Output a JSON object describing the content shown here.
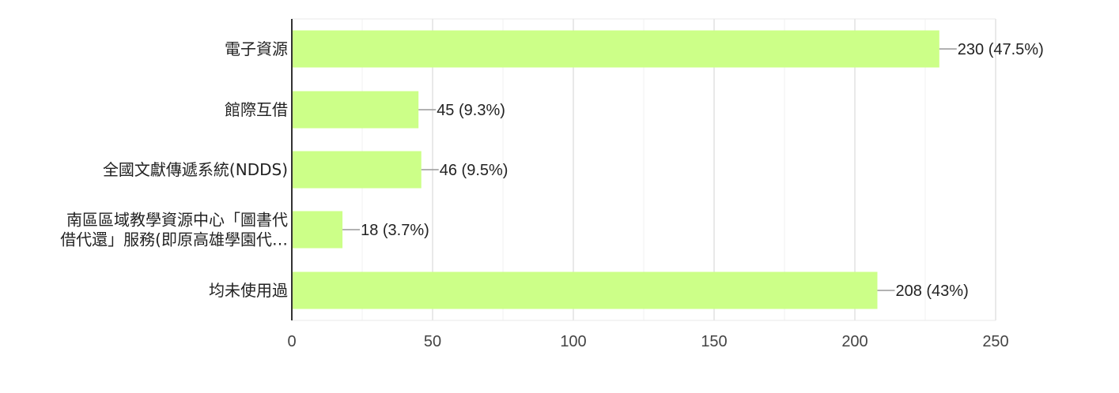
{
  "chart_data": {
    "type": "bar",
    "orientation": "horizontal",
    "categories": [
      "電子資源",
      "館際互借",
      "全國文獻傳遞系統(NDDS)",
      "南區區域教學資源中心「圖書代借代還」服務(即原高雄學園代…",
      "均未使用過"
    ],
    "category_lines": [
      [
        "電子資源"
      ],
      [
        "館際互借"
      ],
      [
        "全國文獻傳遞系統(NDDS)"
      ],
      [
        "南區區域教學資源中心「圖書代",
        "借代還」服務(即原高雄學園代…"
      ],
      [
        "均未使用過"
      ]
    ],
    "values": [
      230,
      45,
      46,
      18,
      208
    ],
    "data_labels": [
      "230 (47.5%)",
      "45 (9.3%)",
      "46 (9.5%)",
      "18 (3.7%)",
      "208 (43%)"
    ],
    "x_ticks": [
      0,
      50,
      100,
      150,
      200,
      250
    ],
    "xlim": [
      0,
      250
    ],
    "title": "",
    "xlabel": "",
    "ylabel": "",
    "grid": true,
    "legend": "none",
    "colors": {
      "bar": "#ccff88",
      "axis": "#333333",
      "grid": "#e8e8e8",
      "leader": "#999999"
    }
  }
}
